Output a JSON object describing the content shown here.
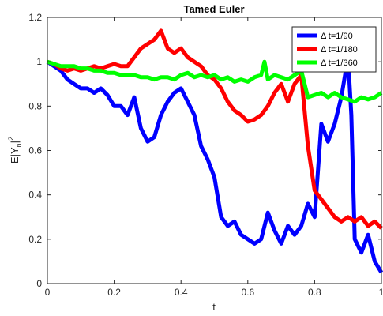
{
  "chart_data": {
    "type": "line",
    "title": "Tamed Euler",
    "xlabel": "t",
    "ylabel": "E|Y_n|^2",
    "ylabel_parts": {
      "main": "E|Y",
      "sub": "n",
      "after": "|",
      "sup": "2"
    },
    "xlim": [
      0,
      1
    ],
    "ylim": [
      0,
      1.2
    ],
    "xticks": [
      0,
      0.2,
      0.4,
      0.6,
      0.8,
      1
    ],
    "xtick_labels": [
      "0",
      "0.2",
      "0.4",
      "0.6",
      "0.8",
      "1"
    ],
    "yticks": [
      0,
      0.2,
      0.4,
      0.6,
      0.8,
      1,
      1.2
    ],
    "ytick_labels": [
      "0",
      "0.2",
      "0.4",
      "0.6",
      "0.8",
      "1",
      "1.2"
    ],
    "grid": false,
    "legend_position": "top-right",
    "series": [
      {
        "name": "Δ t=1/90",
        "color": "#0000ff",
        "x": [
          0,
          0.02,
          0.04,
          0.06,
          0.08,
          0.1,
          0.12,
          0.14,
          0.16,
          0.18,
          0.2,
          0.22,
          0.24,
          0.26,
          0.28,
          0.3,
          0.32,
          0.34,
          0.36,
          0.38,
          0.4,
          0.42,
          0.44,
          0.46,
          0.48,
          0.5,
          0.52,
          0.54,
          0.56,
          0.58,
          0.6,
          0.62,
          0.64,
          0.66,
          0.68,
          0.7,
          0.72,
          0.74,
          0.76,
          0.78,
          0.8,
          0.82,
          0.84,
          0.86,
          0.88,
          0.9,
          0.91,
          0.92,
          0.94,
          0.96,
          0.98,
          1.0
        ],
        "y": [
          1.0,
          0.98,
          0.96,
          0.92,
          0.9,
          0.88,
          0.88,
          0.86,
          0.88,
          0.85,
          0.8,
          0.8,
          0.76,
          0.84,
          0.7,
          0.64,
          0.66,
          0.76,
          0.82,
          0.86,
          0.88,
          0.82,
          0.76,
          0.62,
          0.56,
          0.48,
          0.3,
          0.26,
          0.28,
          0.22,
          0.2,
          0.18,
          0.2,
          0.32,
          0.24,
          0.18,
          0.26,
          0.22,
          0.26,
          0.36,
          0.3,
          0.72,
          0.64,
          0.72,
          0.84,
          1.02,
          0.76,
          0.2,
          0.14,
          0.22,
          0.1,
          0.05
        ]
      },
      {
        "name": "Δ t=1/180",
        "color": "#ff0000",
        "x": [
          0,
          0.02,
          0.04,
          0.06,
          0.08,
          0.1,
          0.12,
          0.14,
          0.16,
          0.18,
          0.2,
          0.22,
          0.24,
          0.26,
          0.28,
          0.3,
          0.32,
          0.34,
          0.36,
          0.38,
          0.4,
          0.42,
          0.44,
          0.46,
          0.48,
          0.5,
          0.52,
          0.54,
          0.56,
          0.58,
          0.6,
          0.62,
          0.64,
          0.66,
          0.68,
          0.7,
          0.72,
          0.74,
          0.76,
          0.78,
          0.8,
          0.82,
          0.84,
          0.86,
          0.88,
          0.9,
          0.92,
          0.94,
          0.96,
          0.98,
          1.0
        ],
        "y": [
          1.0,
          0.99,
          0.97,
          0.96,
          0.97,
          0.96,
          0.97,
          0.98,
          0.97,
          0.98,
          0.99,
          0.98,
          0.98,
          1.02,
          1.06,
          1.08,
          1.1,
          1.14,
          1.06,
          1.04,
          1.06,
          1.02,
          1.0,
          0.98,
          0.94,
          0.92,
          0.88,
          0.82,
          0.78,
          0.76,
          0.73,
          0.74,
          0.76,
          0.8,
          0.86,
          0.9,
          0.82,
          0.9,
          0.94,
          0.62,
          0.42,
          0.38,
          0.34,
          0.3,
          0.28,
          0.3,
          0.28,
          0.3,
          0.26,
          0.28,
          0.25
        ]
      },
      {
        "name": "Δ t=1/360",
        "color": "#00ff00",
        "x": [
          0,
          0.02,
          0.04,
          0.06,
          0.08,
          0.1,
          0.12,
          0.14,
          0.16,
          0.18,
          0.2,
          0.22,
          0.24,
          0.26,
          0.28,
          0.3,
          0.32,
          0.34,
          0.36,
          0.38,
          0.4,
          0.42,
          0.44,
          0.46,
          0.48,
          0.5,
          0.52,
          0.54,
          0.56,
          0.58,
          0.6,
          0.62,
          0.64,
          0.65,
          0.66,
          0.68,
          0.7,
          0.72,
          0.74,
          0.76,
          0.78,
          0.8,
          0.82,
          0.84,
          0.86,
          0.88,
          0.9,
          0.92,
          0.94,
          0.96,
          0.98,
          1.0
        ],
        "y": [
          1.0,
          0.99,
          0.98,
          0.98,
          0.98,
          0.97,
          0.97,
          0.96,
          0.96,
          0.95,
          0.95,
          0.94,
          0.94,
          0.94,
          0.93,
          0.93,
          0.92,
          0.93,
          0.93,
          0.92,
          0.94,
          0.95,
          0.93,
          0.94,
          0.93,
          0.94,
          0.92,
          0.93,
          0.91,
          0.92,
          0.91,
          0.93,
          0.94,
          1.0,
          0.92,
          0.94,
          0.93,
          0.92,
          0.94,
          0.96,
          0.84,
          0.85,
          0.86,
          0.84,
          0.86,
          0.84,
          0.83,
          0.82,
          0.84,
          0.83,
          0.84,
          0.86
        ]
      }
    ]
  }
}
